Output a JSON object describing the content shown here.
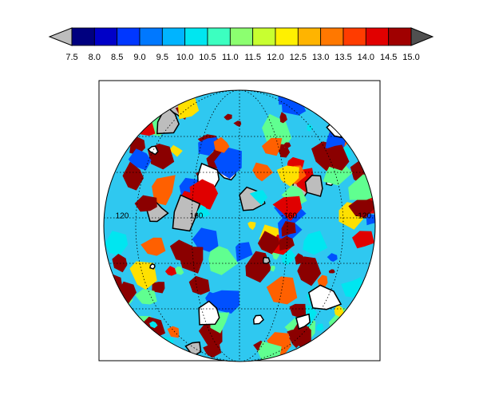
{
  "colorbar": {
    "labels": [
      "7.5",
      "8.0",
      "8.5",
      "9.0",
      "9.5",
      "10.0",
      "10.5",
      "11.0",
      "11.5",
      "12.0",
      "12.5",
      "13.0",
      "13.5",
      "14.0",
      "14.5",
      "15.0"
    ],
    "colors": [
      "#00007f",
      "#0000c8",
      "#0037ff",
      "#0078ff",
      "#00b4ff",
      "#00e6f0",
      "#3cffc0",
      "#8cff70",
      "#c8ff30",
      "#fff000",
      "#ffb400",
      "#ff7800",
      "#ff3c00",
      "#e10000",
      "#a00000"
    ],
    "under_color": "#bdbdbd",
    "over_color": "#505050"
  },
  "map": {
    "longitude_labels": [
      "120",
      "160",
      "-160",
      "-120"
    ]
  }
}
